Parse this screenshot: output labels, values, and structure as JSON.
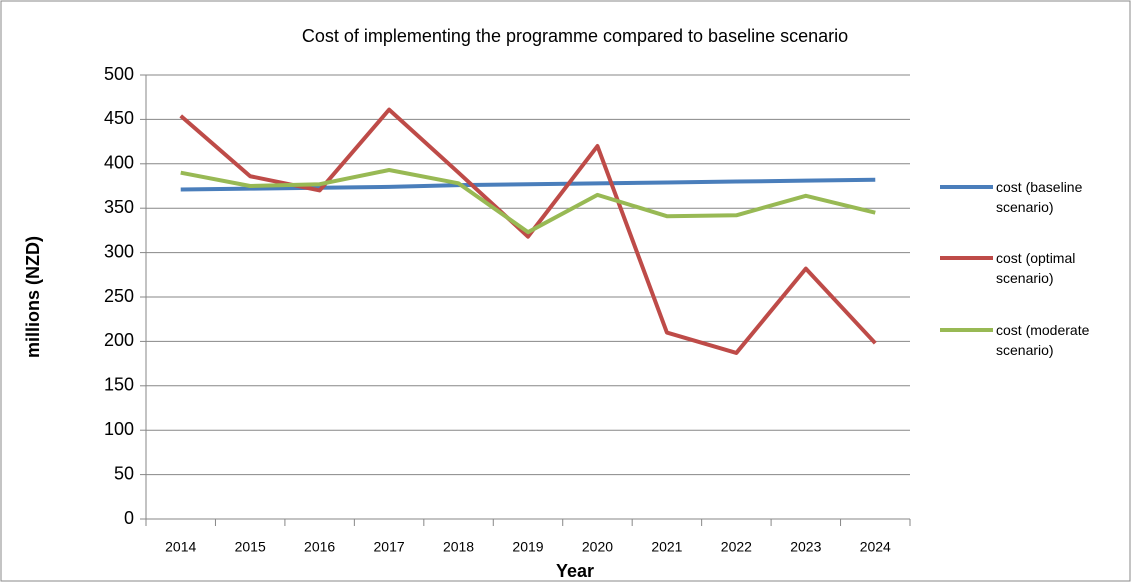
{
  "chart_data": {
    "type": "line",
    "title": "Cost of implementing the programme compared to baseline scenario",
    "x_label": "Year",
    "y_label": "millions (NZD)",
    "categories": [
      "2014",
      "2015",
      "2016",
      "2017",
      "2018",
      "2019",
      "2020",
      "2021",
      "2022",
      "2023",
      "2024"
    ],
    "series": [
      {
        "name": "cost (baseline scenario)",
        "color": "#4a7ebb",
        "values": [
          371,
          372,
          373,
          374,
          376,
          377,
          378,
          379,
          380,
          381,
          382
        ]
      },
      {
        "name": "cost (optimal scenario)",
        "color": "#be4b48",
        "values": [
          454,
          386,
          370,
          461,
          390,
          318,
          420,
          210,
          187,
          282,
          198
        ]
      },
      {
        "name": "cost (moderate scenario)",
        "color": "#98b954",
        "values": [
          390,
          375,
          377,
          393,
          378,
          323,
          365,
          341,
          342,
          364,
          345
        ]
      }
    ],
    "ylim": [
      0,
      500
    ],
    "yticks": [
      0,
      50,
      100,
      150,
      200,
      250,
      300,
      350,
      400,
      450,
      500
    ],
    "grid": true,
    "legend": "right"
  }
}
